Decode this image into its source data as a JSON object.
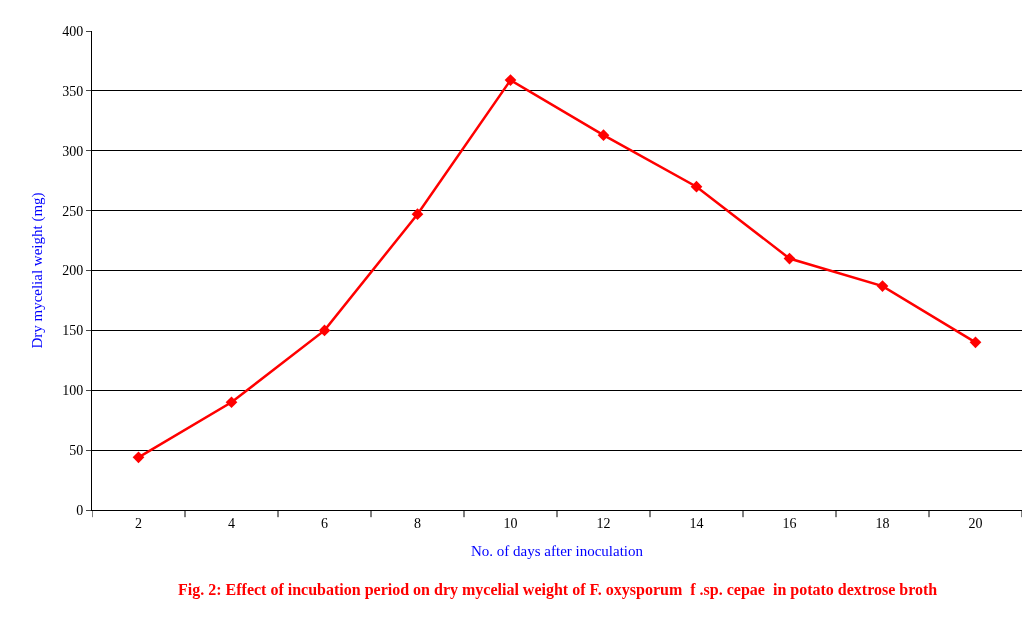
{
  "chart_data": {
    "type": "line",
    "xlabel": "No. of days after inoculation",
    "ylabel": "Dry mycelial weight (mg)",
    "annotations": [
      "Fig. 2: Effect of incubation period on dry mycelial weight of F. oxysporum  f .sp. cepae  in potato dextrose broth"
    ],
    "categories": [
      "2",
      "4",
      "6",
      "8",
      "10",
      "12",
      "14",
      "16",
      "18",
      "20"
    ],
    "series": [
      {
        "color": "#ff0000",
        "values": [
          44,
          90,
          150,
          247,
          359,
          313,
          270,
          210,
          187,
          140
        ]
      }
    ],
    "ylim": [
      0,
      400
    ],
    "yticks": [
      0,
      50,
      100,
      150,
      200,
      250,
      300,
      350,
      400
    ],
    "grid": "y",
    "legend": false,
    "marker": "diamond",
    "line_style": "solid"
  }
}
